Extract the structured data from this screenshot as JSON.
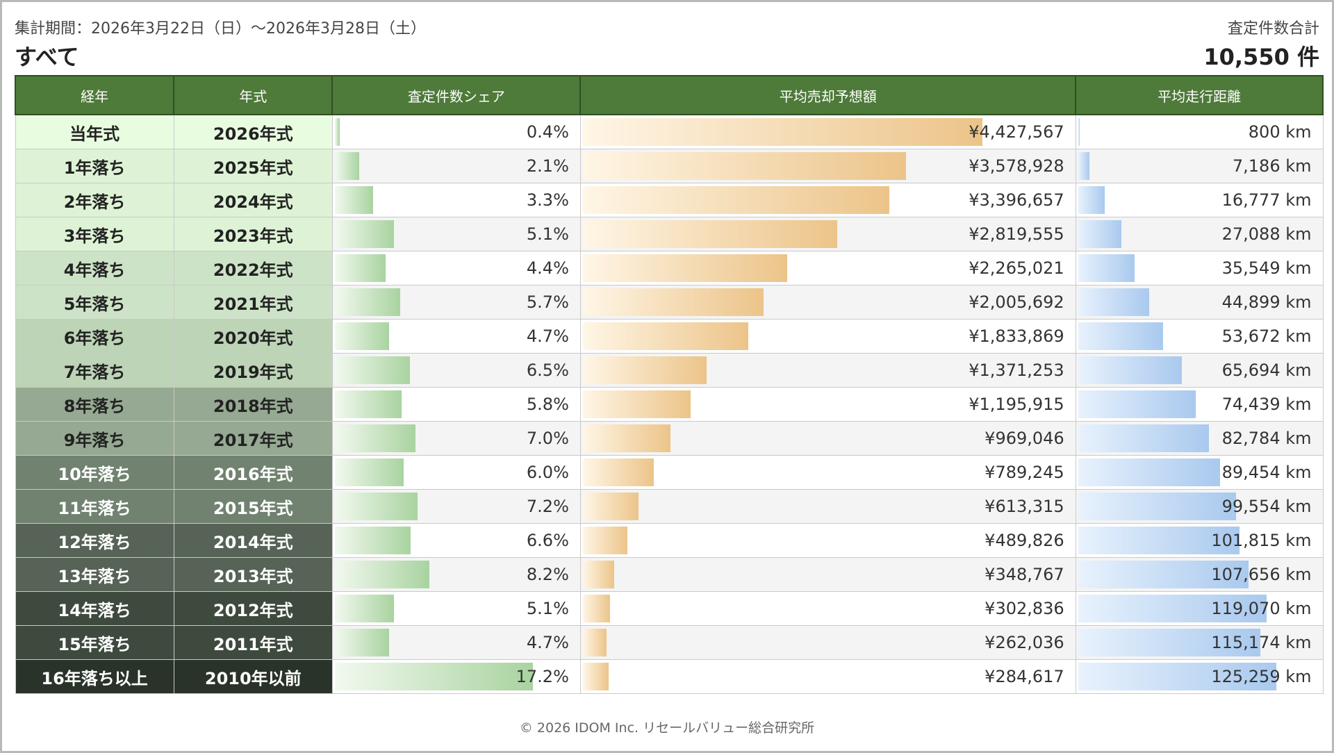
{
  "header": {
    "period": "集計期間：2026年3月22日（日）〜2026年3月28日（土）",
    "category": "すべて",
    "total_label": "査定件数合計",
    "total_value": "10,550 件"
  },
  "footer": "© 2026 IDOM Inc. リセールバリュー総合研究所",
  "chart_data": {
    "type": "table",
    "columns": [
      "経年",
      "年式",
      "査定件数シェア",
      "平均売却予想額",
      "平均走行距離"
    ],
    "rows": [
      {
        "age": "当年式",
        "model": "2026年式",
        "share_label": "0.4%",
        "share": 0.4,
        "price_label": "¥4,427,567",
        "price": 4427567,
        "mileage_label": "800 km",
        "mileage": 800,
        "age_bg": "#e8fce0",
        "age_fg": "#222"
      },
      {
        "age": "1年落ち",
        "model": "2025年式",
        "share_label": "2.1%",
        "share": 2.1,
        "price_label": "¥3,578,928",
        "price": 3578928,
        "mileage_label": "7,186 km",
        "mileage": 7186,
        "age_bg": "#def3d6",
        "age_fg": "#222"
      },
      {
        "age": "2年落ち",
        "model": "2024年式",
        "share_label": "3.3%",
        "share": 3.3,
        "price_label": "¥3,396,657",
        "price": 3396657,
        "mileage_label": "16,777 km",
        "mileage": 16777,
        "age_bg": "#def3d6",
        "age_fg": "#222"
      },
      {
        "age": "3年落ち",
        "model": "2023年式",
        "share_label": "5.1%",
        "share": 5.1,
        "price_label": "¥2,819,555",
        "price": 2819555,
        "mileage_label": "27,088 km",
        "mileage": 27088,
        "age_bg": "#def3d6",
        "age_fg": "#222"
      },
      {
        "age": "4年落ち",
        "model": "2022年式",
        "share_label": "4.4%",
        "share": 4.4,
        "price_label": "¥2,265,021",
        "price": 2265021,
        "mileage_label": "35,549 km",
        "mileage": 35549,
        "age_bg": "#cde3c7",
        "age_fg": "#222"
      },
      {
        "age": "5年落ち",
        "model": "2021年式",
        "share_label": "5.7%",
        "share": 5.7,
        "price_label": "¥2,005,692",
        "price": 2005692,
        "mileage_label": "44,899 km",
        "mileage": 44899,
        "age_bg": "#cde3c7",
        "age_fg": "#222"
      },
      {
        "age": "6年落ち",
        "model": "2020年式",
        "share_label": "4.7%",
        "share": 4.7,
        "price_label": "¥1,833,869",
        "price": 1833869,
        "mileage_label": "53,672 km",
        "mileage": 53672,
        "age_bg": "#bdd4b7",
        "age_fg": "#222"
      },
      {
        "age": "7年落ち",
        "model": "2019年式",
        "share_label": "6.5%",
        "share": 6.5,
        "price_label": "¥1,371,253",
        "price": 1371253,
        "mileage_label": "65,694 km",
        "mileage": 65694,
        "age_bg": "#bdd4b7",
        "age_fg": "#222"
      },
      {
        "age": "8年落ち",
        "model": "2018年式",
        "share_label": "5.8%",
        "share": 5.8,
        "price_label": "¥1,195,915",
        "price": 1195915,
        "mileage_label": "74,439 km",
        "mileage": 74439,
        "age_bg": "#96a992",
        "age_fg": "#222"
      },
      {
        "age": "9年落ち",
        "model": "2017年式",
        "share_label": "7.0%",
        "share": 7.0,
        "price_label": "¥969,046",
        "price": 969046,
        "mileage_label": "82,784 km",
        "mileage": 82784,
        "age_bg": "#96a992",
        "age_fg": "#222"
      },
      {
        "age": "10年落ち",
        "model": "2016年式",
        "share_label": "6.0%",
        "share": 6.0,
        "price_label": "¥789,245",
        "price": 789245,
        "mileage_label": "89,454 km",
        "mileage": 89454,
        "age_bg": "#718271",
        "age_fg": "#ffffff"
      },
      {
        "age": "11年落ち",
        "model": "2015年式",
        "share_label": "7.2%",
        "share": 7.2,
        "price_label": "¥613,315",
        "price": 613315,
        "mileage_label": "99,554 km",
        "mileage": 99554,
        "age_bg": "#718271",
        "age_fg": "#ffffff"
      },
      {
        "age": "12年落ち",
        "model": "2014年式",
        "share_label": "6.6%",
        "share": 6.6,
        "price_label": "¥489,826",
        "price": 489826,
        "mileage_label": "101,815 km",
        "mileage": 101815,
        "age_bg": "#566356",
        "age_fg": "#ffffff"
      },
      {
        "age": "13年落ち",
        "model": "2013年式",
        "share_label": "8.2%",
        "share": 8.2,
        "price_label": "¥348,767",
        "price": 348767,
        "mileage_label": "107,656 km",
        "mileage": 107656,
        "age_bg": "#566356",
        "age_fg": "#ffffff"
      },
      {
        "age": "14年落ち",
        "model": "2012年式",
        "share_label": "5.1%",
        "share": 5.1,
        "price_label": "¥302,836",
        "price": 302836,
        "mileage_label": "119,070 km",
        "mileage": 119070,
        "age_bg": "#3f4a3f",
        "age_fg": "#ffffff"
      },
      {
        "age": "15年落ち",
        "model": "2011年式",
        "share_label": "4.7%",
        "share": 4.7,
        "price_label": "¥262,036",
        "price": 262036,
        "mileage_label": "115,174 km",
        "mileage": 115174,
        "age_bg": "#3f4a3f",
        "age_fg": "#ffffff"
      },
      {
        "age": "16年落ち以上",
        "model": "2010年以前",
        "share_label": "17.2%",
        "share": 17.2,
        "price_label": "¥284,617",
        "price": 284617,
        "mileage_label": "125,259 km",
        "mileage": 125259,
        "age_bg": "#2a332a",
        "age_fg": "#ffffff"
      }
    ],
    "share_max": 17.2,
    "price_max": 4427567,
    "mileage_max": 125259
  }
}
